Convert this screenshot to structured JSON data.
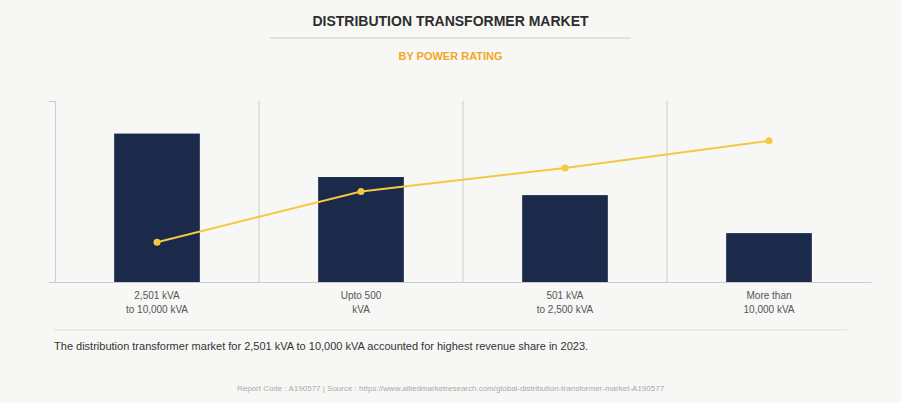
{
  "chart_data": {
    "type": "bar",
    "title": "DISTRIBUTION TRANSFORMER MARKET",
    "subtitle": "BY POWER RATING",
    "categories": [
      "2,501 kVA\nto 10,000 kVA",
      "Upto 500\nkVA",
      "501 kVA\nto 2,500 kVA",
      "More than\n10,000 kVA"
    ],
    "series": [
      {
        "type": "bar",
        "color": "#1b2a4a",
        "values": [
          82,
          58,
          48,
          27
        ]
      },
      {
        "type": "line",
        "color": "#f5c842",
        "marker": "circle",
        "values": [
          22,
          50,
          63,
          78
        ]
      }
    ],
    "ylim": [
      0,
      100
    ],
    "yticks": [],
    "tick_labels": "x",
    "grid": false,
    "annotations": [
      "The distribution transformer market for 2,501 kVA to 10,000 kVA accounted for highest revenue share in 2023.",
      "Report Code : A190577  |  Source : https://www.alliedmarketresearch.com/global-distribution-transformer-market-A190577"
    ]
  }
}
